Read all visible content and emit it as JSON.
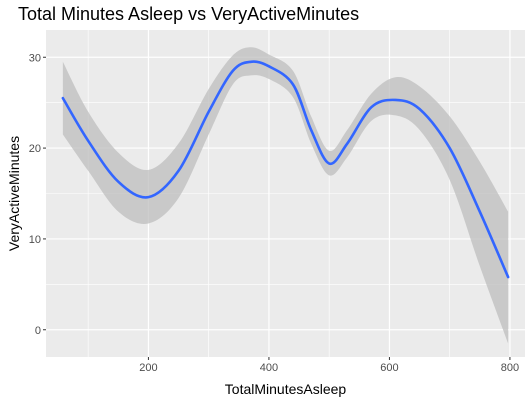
{
  "chart_data": {
    "type": "line",
    "title": "Total Minutes Asleep vs VeryActiveMinutes",
    "xlabel": "TotalMinutesAsleep",
    "ylabel": "VeryActiveMinutes",
    "xlim": [
      30,
      825
    ],
    "ylim": [
      -3,
      33
    ],
    "x_ticks": [
      200,
      400,
      600,
      800
    ],
    "x_tick_labels": [
      "200",
      "400",
      "600",
      "800"
    ],
    "y_ticks": [
      0,
      10,
      20,
      30
    ],
    "y_tick_labels": [
      "0",
      "10",
      "20",
      "30"
    ],
    "grid": true,
    "series": [
      {
        "style": "smooth",
        "color": "#3366ff",
        "ribbon_color": "#bdbdbd",
        "points": [
          {
            "x": 58,
            "y": 25.5,
            "lo": 21.5,
            "hi": 29.5
          },
          {
            "x": 100,
            "y": 20.8,
            "lo": 17.5,
            "hi": 24.0
          },
          {
            "x": 150,
            "y": 16.3,
            "lo": 13.0,
            "hi": 19.5
          },
          {
            "x": 200,
            "y": 14.6,
            "lo": 11.7,
            "hi": 17.6
          },
          {
            "x": 250,
            "y": 17.5,
            "lo": 14.5,
            "hi": 20.5
          },
          {
            "x": 300,
            "y": 24.0,
            "lo": 21.5,
            "hi": 26.5
          },
          {
            "x": 340,
            "y": 28.5,
            "lo": 27.0,
            "hi": 30.2
          },
          {
            "x": 370,
            "y": 29.5,
            "lo": 28.0,
            "hi": 31.1
          },
          {
            "x": 400,
            "y": 29.0,
            "lo": 27.6,
            "hi": 30.3
          },
          {
            "x": 440,
            "y": 27.0,
            "lo": 25.6,
            "hi": 28.5
          },
          {
            "x": 470,
            "y": 22.0,
            "lo": 20.5,
            "hi": 23.5
          },
          {
            "x": 500,
            "y": 18.3,
            "lo": 17.0,
            "hi": 19.7
          },
          {
            "x": 530,
            "y": 20.5,
            "lo": 19.0,
            "hi": 22.0
          },
          {
            "x": 570,
            "y": 24.5,
            "lo": 23.0,
            "hi": 26.0
          },
          {
            "x": 610,
            "y": 25.3,
            "lo": 23.6,
            "hi": 27.8
          },
          {
            "x": 650,
            "y": 24.3,
            "lo": 22.0,
            "hi": 26.8
          },
          {
            "x": 700,
            "y": 20.0,
            "lo": 16.5,
            "hi": 23.5
          },
          {
            "x": 750,
            "y": 13.0,
            "lo": 7.0,
            "hi": 18.5
          },
          {
            "x": 797,
            "y": 5.8,
            "lo": -1.5,
            "hi": 13.0
          }
        ]
      }
    ]
  }
}
